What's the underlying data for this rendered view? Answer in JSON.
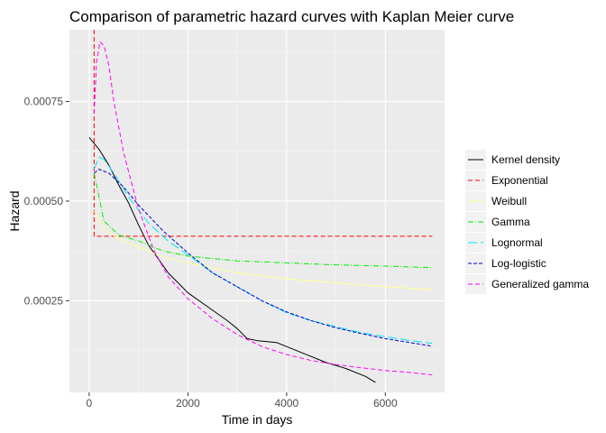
{
  "chart_data": {
    "type": "line",
    "title": "Comparison of parametric hazard curves with Kaplan Meier curve",
    "xlabel": "Time in days",
    "ylabel": "Hazard",
    "xlim": [
      -400,
      7200
    ],
    "ylim": [
      2e-05,
      0.00093
    ],
    "x_ticks": [
      0,
      2000,
      4000,
      6000
    ],
    "x_tick_labels": [
      "0",
      "2000",
      "4000",
      "6000"
    ],
    "y_ticks": [
      0.00025,
      0.0005,
      0.00075
    ],
    "y_tick_labels": [
      "0.00025",
      "0.00050",
      "0.00075"
    ],
    "grid": true,
    "legend_position": "right",
    "series": [
      {
        "name": "Kernel density",
        "color": "#000000",
        "dash": "solid",
        "points": [
          [
            0,
            0.00066
          ],
          [
            200,
            0.00063
          ],
          [
            400,
            0.00059
          ],
          [
            600,
            0.00054
          ],
          [
            800,
            0.000495
          ],
          [
            1000,
            0.00044
          ],
          [
            1200,
            0.00039
          ],
          [
            1400,
            0.000355
          ],
          [
            1600,
            0.00032
          ],
          [
            1800,
            0.000295
          ],
          [
            2000,
            0.00027
          ],
          [
            2400,
            0.000235
          ],
          [
            2800,
            0.0002
          ],
          [
            3000,
            0.00018
          ],
          [
            3200,
            0.000155
          ],
          [
            3400,
            0.00015
          ],
          [
            3800,
            0.000145
          ],
          [
            4000,
            0.000135
          ],
          [
            4400,
            0.000115
          ],
          [
            4800,
            9.5e-05
          ],
          [
            5200,
            8e-05
          ],
          [
            5600,
            6e-05
          ],
          [
            5800,
            4.5e-05
          ]
        ]
      },
      {
        "name": "Exponential",
        "color": "#ff0000",
        "dash": "5,3",
        "points": [
          [
            100,
            0.00093
          ],
          [
            100,
            0.000412
          ],
          [
            6950,
            0.000412
          ]
        ]
      },
      {
        "name": "Weibull",
        "color": "#ffff99",
        "dash": "solid",
        "points": [
          [
            100,
            0.000475
          ],
          [
            300,
            0.00043
          ],
          [
            600,
            0.000405
          ],
          [
            1000,
            0.000385
          ],
          [
            1500,
            0.00036
          ],
          [
            2000,
            0.000345
          ],
          [
            3000,
            0.00032
          ],
          [
            4000,
            0.000305
          ],
          [
            5000,
            0.000295
          ],
          [
            6000,
            0.000285
          ],
          [
            6950,
            0.000278
          ]
        ]
      },
      {
        "name": "Gamma",
        "color": "#00ee00",
        "dash": "6,2,1,2",
        "points": [
          [
            100,
            0.00057
          ],
          [
            300,
            0.00045
          ],
          [
            600,
            0.000415
          ],
          [
            1000,
            0.0004
          ],
          [
            1500,
            0.000375
          ],
          [
            2000,
            0.000362
          ],
          [
            3000,
            0.00035
          ],
          [
            4000,
            0.000345
          ],
          [
            5000,
            0.00034
          ],
          [
            6000,
            0.000337
          ],
          [
            6950,
            0.000333
          ]
        ]
      },
      {
        "name": "Lognormal",
        "color": "#00e5ee",
        "dash": "10,4",
        "points": [
          [
            100,
            0.00058
          ],
          [
            200,
            0.00061
          ],
          [
            300,
            0.000605
          ],
          [
            500,
            0.00057
          ],
          [
            800,
            0.00051
          ],
          [
            1200,
            0.000445
          ],
          [
            1600,
            0.0004
          ],
          [
            2000,
            0.000365
          ],
          [
            2500,
            0.00032
          ],
          [
            3000,
            0.000285
          ],
          [
            3500,
            0.00025
          ],
          [
            4000,
            0.00022
          ],
          [
            4500,
            0.0002
          ],
          [
            5000,
            0.000185
          ],
          [
            5500,
            0.00017
          ],
          [
            6000,
            0.00016
          ],
          [
            6500,
            0.00015
          ],
          [
            6950,
            0.000143
          ]
        ]
      },
      {
        "name": "Log-logistic",
        "color": "#0000cd",
        "dash": "4,2",
        "points": [
          [
            100,
            0.00057
          ],
          [
            200,
            0.00058
          ],
          [
            400,
            0.00057
          ],
          [
            700,
            0.000535
          ],
          [
            1000,
            0.00049
          ],
          [
            1500,
            0.000425
          ],
          [
            2000,
            0.00037
          ],
          [
            2500,
            0.00032
          ],
          [
            3000,
            0.000285
          ],
          [
            3500,
            0.00025
          ],
          [
            4000,
            0.000222
          ],
          [
            4500,
            0.0002
          ],
          [
            5000,
            0.000182
          ],
          [
            5500,
            0.000168
          ],
          [
            6000,
            0.000155
          ],
          [
            6500,
            0.000145
          ],
          [
            6950,
            0.000136
          ]
        ]
      },
      {
        "name": "Generalized gamma",
        "color": "#ff00ff",
        "dash": "5,3",
        "points": [
          [
            100,
            0.00072
          ],
          [
            150,
            0.00085
          ],
          [
            220,
            0.0009
          ],
          [
            300,
            0.00089
          ],
          [
            400,
            0.00084
          ],
          [
            500,
            0.00075
          ],
          [
            700,
            0.00062
          ],
          [
            1000,
            0.00048
          ],
          [
            1300,
            0.00038
          ],
          [
            1600,
            0.00031
          ],
          [
            2000,
            0.000255
          ],
          [
            2500,
            0.000205
          ],
          [
            3000,
            0.000165
          ],
          [
            3500,
            0.000135
          ],
          [
            4000,
            0.000115
          ],
          [
            4500,
            0.0001
          ],
          [
            5000,
            9e-05
          ],
          [
            5500,
            8.2e-05
          ],
          [
            6000,
            7.5e-05
          ],
          [
            6500,
            7e-05
          ],
          [
            6950,
            6.4e-05
          ]
        ]
      }
    ]
  }
}
